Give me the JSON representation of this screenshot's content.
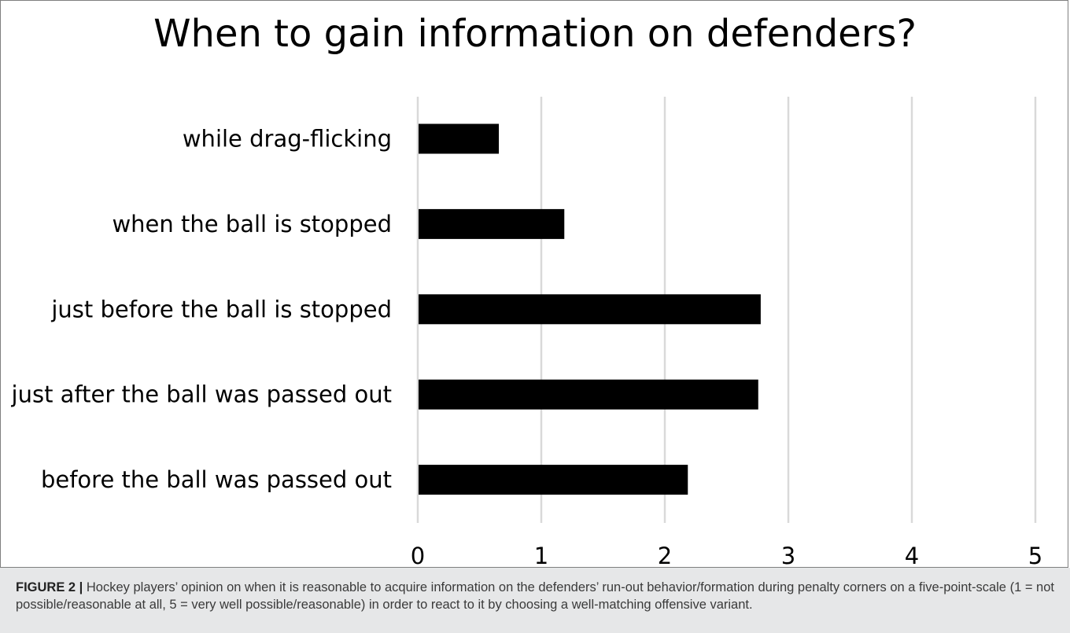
{
  "chart_data": {
    "type": "bar",
    "orientation": "horizontal",
    "title": "When to gain information on defenders?",
    "categories": [
      "while drag-flicking",
      "when the ball is stopped",
      "just before the ball is stopped",
      "just after the ball was passed out",
      "before the ball was passed out"
    ],
    "values": [
      0.65,
      1.18,
      2.77,
      2.75,
      2.18
    ],
    "xlim": [
      0,
      5
    ],
    "xticks": [
      "0",
      "1",
      "2",
      "3",
      "4",
      "5"
    ],
    "grid": true,
    "bar_color": "#000000",
    "grid_color": "#d9d9d9"
  },
  "caption": {
    "label": "FIGURE 2 |",
    "text": " Hockey players’ opinion on when it is reasonable to acquire information on the defenders’ run-out behavior/formation during penalty corners on a five-point-scale (1 = not possible/reasonable at all, 5 = very well possible/reasonable) in order to react to it by choosing a well-matching offensive variant."
  }
}
